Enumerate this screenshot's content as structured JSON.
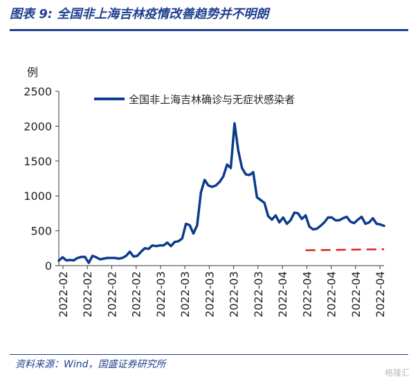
{
  "header": {
    "title": "图表 9:  全国非上海吉林疫情改善趋势并不明朗"
  },
  "footer": {
    "source": "资料来源：Wind，国盛证券研究所"
  },
  "watermark": {
    "text": "格隆汇"
  },
  "chart_data": {
    "type": "line",
    "ylabel": "例",
    "ylim": [
      0,
      2500
    ],
    "yticks": [
      0,
      500,
      1000,
      1500,
      2000,
      2500
    ],
    "xticks": [
      "2022-02",
      "2022-02",
      "2022-02",
      "2022-02",
      "2022-03",
      "2022-03",
      "2022-03",
      "2022-03",
      "2022-03",
      "2022-04",
      "2022-04",
      "2022-04",
      "2022-04",
      "2022-04"
    ],
    "legend_position": "top",
    "series": [
      {
        "name": "全国非上海吉林确诊与无症状感染者",
        "color": "#0b3b8c",
        "values": [
          70,
          120,
          75,
          80,
          75,
          110,
          125,
          125,
          40,
          140,
          120,
          90,
          100,
          110,
          110,
          110,
          100,
          110,
          140,
          200,
          130,
          140,
          200,
          250,
          240,
          290,
          280,
          290,
          290,
          330,
          280,
          340,
          350,
          390,
          600,
          580,
          460,
          580,
          1050,
          1230,
          1150,
          1130,
          1150,
          1200,
          1280,
          1450,
          1400,
          2040,
          1650,
          1400,
          1310,
          1300,
          1340,
          980,
          940,
          900,
          710,
          660,
          720,
          620,
          690,
          600,
          650,
          760,
          750,
          670,
          720,
          560,
          520,
          530,
          570,
          620,
          690,
          690,
          650,
          650,
          680,
          700,
          630,
          610,
          660,
          700,
          600,
          620,
          680,
          600,
          590,
          570
        ]
      },
      {
        "name": "",
        "color": "#e0201b",
        "dashed": true,
        "start_index": 61,
        "values": [
          220,
          235
        ]
      }
    ]
  }
}
